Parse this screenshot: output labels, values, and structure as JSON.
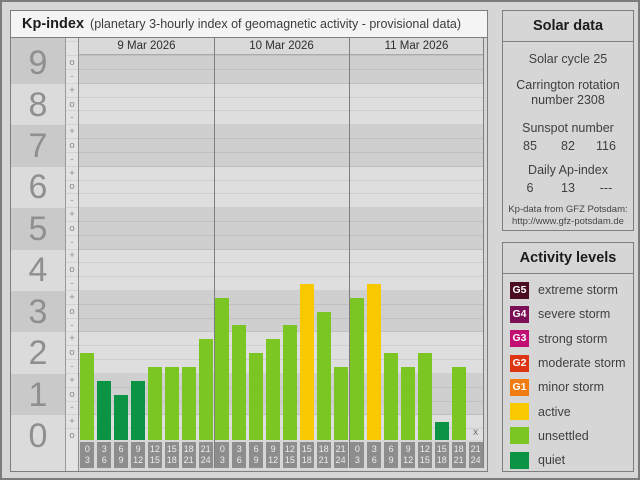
{
  "header": {
    "title": "Kp-index",
    "subtitle": "(planetary 3-hourly index of geomagnetic activity - provisional data)"
  },
  "chart_data": {
    "type": "bar",
    "title": "Kp-index (planetary 3-hourly index of geomagnetic activity - provisional data)",
    "ylabel": "Kp",
    "ylim": [
      0,
      9
    ],
    "y_tick_labels": [
      "0",
      "1",
      "2",
      "3",
      "4",
      "5",
      "6",
      "7",
      "8",
      "9"
    ],
    "y_subtick_symbols": [
      "+",
      "o",
      "-"
    ],
    "x_slots": [
      [
        "0",
        "3"
      ],
      [
        "3",
        "6"
      ],
      [
        "6",
        "9"
      ],
      [
        "9",
        "12"
      ],
      [
        "12",
        "15"
      ],
      [
        "15",
        "18"
      ],
      [
        "18",
        "21"
      ],
      [
        "21",
        "24"
      ]
    ],
    "days": [
      {
        "date": "9 Mar 2026",
        "kp_notation": [
          "2o",
          "1+",
          "1o",
          "1+",
          "2-",
          "2-",
          "2-",
          "2+"
        ],
        "kp": [
          2,
          1.33,
          1,
          1.33,
          1.67,
          1.67,
          1.67,
          2.33
        ],
        "levels": [
          "unsettled",
          "quiet",
          "quiet",
          "quiet",
          "unsettled",
          "unsettled",
          "unsettled",
          "unsettled"
        ]
      },
      {
        "date": "10 Mar 2026",
        "kp_notation": [
          "3+",
          "3-",
          "2o",
          "2+",
          "3-",
          "4-",
          "3o",
          "2-"
        ],
        "kp": [
          3.33,
          2.67,
          2,
          2.33,
          2.67,
          3.67,
          3,
          1.67
        ],
        "levels": [
          "unsettled",
          "unsettled",
          "unsettled",
          "unsettled",
          "unsettled",
          "active",
          "unsettled",
          "unsettled"
        ]
      },
      {
        "date": "11 Mar 2026",
        "kp_notation": [
          "3+",
          "4-",
          "2o",
          "2-",
          "2o",
          "0+",
          "2-",
          null
        ],
        "kp": [
          3.33,
          3.67,
          2,
          1.67,
          2,
          0.33,
          1.67,
          null
        ],
        "levels": [
          "unsettled",
          "active",
          "unsettled",
          "unsettled",
          "unsettled",
          "quiet",
          "unsettled",
          null
        ]
      }
    ],
    "no_data_marker": "x",
    "grid": true,
    "legend_position": "right",
    "level_colors": {
      "quiet": "#0b9444",
      "unsettled": "#7cc623",
      "active": "#f8c800"
    }
  },
  "solar": {
    "title": "Solar data",
    "solar_cycle": "Solar cycle 25",
    "carrington": "Carrington rotation number 2308",
    "sunspot_label": "Sunspot number",
    "sunspot_values": [
      "85",
      "82",
      "116"
    ],
    "ap_label": "Daily Ap-index",
    "ap_values": [
      "6",
      "13",
      "---"
    ],
    "source_line1": "Kp-data from GFZ Potsdam:",
    "source_line2": "http://www.gfz-potsdam.de"
  },
  "activity": {
    "title": "Activity levels",
    "items": [
      {
        "code": "G5",
        "color": "#4c0d24",
        "label": "extreme storm"
      },
      {
        "code": "G4",
        "color": "#7d0f56",
        "label": "severe storm"
      },
      {
        "code": "G3",
        "color": "#c20d72",
        "label": "strong storm"
      },
      {
        "code": "G2",
        "color": "#dd3513",
        "label": "moderate storm"
      },
      {
        "code": "G1",
        "color": "#f07c12",
        "label": "minor storm"
      },
      {
        "code": null,
        "color": "#f8c800",
        "label": "active"
      },
      {
        "code": null,
        "color": "#7cc623",
        "label": "unsettled"
      },
      {
        "code": null,
        "color": "#0b9444",
        "label": "quiet"
      }
    ]
  }
}
